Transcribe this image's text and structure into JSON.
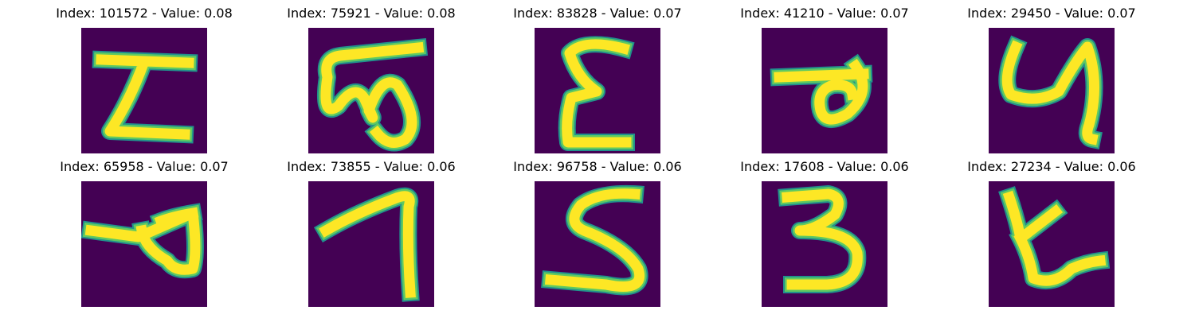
{
  "colors": {
    "background": "#440154",
    "stroke_outer": "#21918c",
    "stroke_mid": "#5ec962",
    "stroke_core": "#fde725"
  },
  "panels": [
    {
      "index": "101572",
      "value": "0.08",
      "title": "Index: 101572 - Value: 0.08"
    },
    {
      "index": "75921",
      "value": "0.08",
      "title": "Index: 75921 - Value: 0.08"
    },
    {
      "index": "83828",
      "value": "0.07",
      "title": "Index: 83828 - Value: 0.07"
    },
    {
      "index": "41210",
      "value": "0.07",
      "title": "Index: 41210 - Value: 0.07"
    },
    {
      "index": "29450",
      "value": "0.07",
      "title": "Index: 29450 - Value: 0.07"
    },
    {
      "index": "65958",
      "value": "0.07",
      "title": "Index: 65958 - Value: 0.07"
    },
    {
      "index": "73855",
      "value": "0.06",
      "title": "Index: 73855 - Value: 0.06"
    },
    {
      "index": "96758",
      "value": "0.06",
      "title": "Index: 96758 - Value: 0.06"
    },
    {
      "index": "17608",
      "value": "0.06",
      "title": "Index: 17608 - Value: 0.06"
    },
    {
      "index": "27234",
      "value": "0.06",
      "title": "Index: 27234 - Value: 0.06"
    }
  ]
}
